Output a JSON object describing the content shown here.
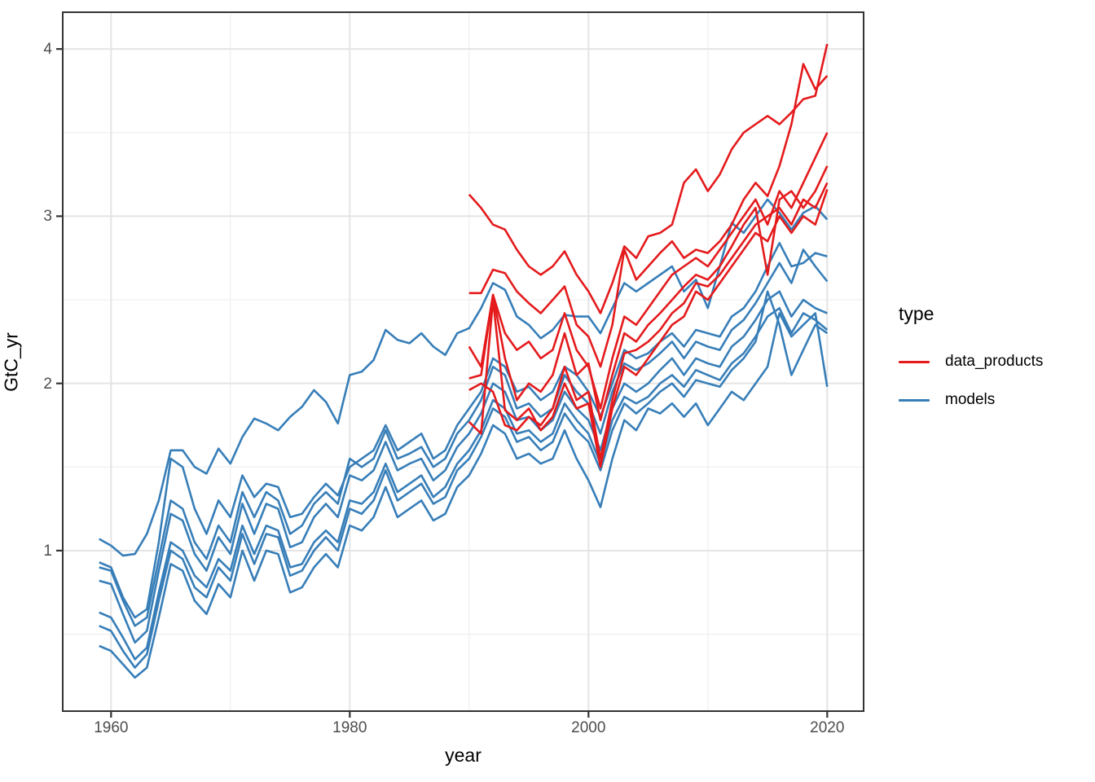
{
  "chart_data": {
    "type": "line",
    "xlabel": "year",
    "ylabel": "GtC_yr",
    "x_domain": [
      1955.95,
      2023.05
    ],
    "y_domain": [
      0.04,
      4.22
    ],
    "x_major_ticks": [
      1960,
      1980,
      2000,
      2020
    ],
    "x_minor_ticks": [
      1970,
      1990,
      2010
    ],
    "y_major_ticks": [
      1,
      2,
      3,
      4
    ],
    "y_minor_ticks": [
      0.5,
      1.5,
      2.5,
      3.5
    ],
    "grid": {
      "major_color": "#e4e4e4",
      "minor_color": "#f0f0f0",
      "panel_border_color": "#333333",
      "tick_color": "#333333"
    },
    "legend": {
      "title": "type",
      "entries": [
        {
          "label": "data_products",
          "color": "#E41A1C"
        },
        {
          "label": "models",
          "color": "#377EB8"
        }
      ]
    },
    "series": [
      {
        "name": "model_1",
        "type": "models",
        "start_year": 1959,
        "values": [
          1.07,
          1.03,
          0.97,
          0.98,
          1.1,
          1.3,
          1.6,
          1.6,
          1.5,
          1.46,
          1.61,
          1.52,
          1.68,
          1.79,
          1.76,
          1.72,
          1.8,
          1.86,
          1.96,
          1.89,
          1.76,
          2.05,
          2.07,
          2.14,
          2.32,
          2.26,
          2.24,
          2.3,
          2.22,
          2.17,
          2.3,
          2.33,
          2.45,
          2.6,
          2.56,
          2.4,
          2.35,
          2.27,
          2.32,
          2.41,
          2.4,
          2.4,
          2.3,
          2.45,
          2.6,
          2.55,
          2.6,
          2.65,
          2.7,
          2.55,
          2.62,
          2.45,
          2.7,
          2.96,
          2.9,
          3.0,
          3.1,
          3.02,
          2.92,
          3.02,
          3.06,
          2.98
        ]
      },
      {
        "name": "model_2",
        "type": "models",
        "start_year": 1959,
        "values": [
          0.93,
          0.9,
          0.72,
          0.6,
          0.65,
          1.05,
          1.55,
          1.5,
          1.25,
          1.1,
          1.3,
          1.2,
          1.45,
          1.32,
          1.4,
          1.38,
          1.2,
          1.22,
          1.32,
          1.4,
          1.33,
          1.5,
          1.55,
          1.6,
          1.75,
          1.6,
          1.65,
          1.7,
          1.55,
          1.6,
          1.75,
          1.85,
          1.95,
          2.15,
          2.1,
          1.95,
          1.98,
          1.9,
          1.95,
          2.1,
          2.05,
          1.95,
          1.8,
          2.0,
          2.2,
          2.15,
          2.18,
          2.25,
          2.3,
          2.22,
          2.32,
          2.3,
          2.28,
          2.4,
          2.45,
          2.55,
          2.7,
          2.84,
          2.7,
          2.72,
          2.78,
          2.76
        ]
      },
      {
        "name": "model_3",
        "type": "models",
        "start_year": 1959,
        "values": [
          0.9,
          0.88,
          0.7,
          0.55,
          0.6,
          0.95,
          1.3,
          1.25,
          1.05,
          0.95,
          1.15,
          1.05,
          1.35,
          1.2,
          1.35,
          1.3,
          1.1,
          1.15,
          1.28,
          1.35,
          1.28,
          1.55,
          1.5,
          1.55,
          1.72,
          1.55,
          1.58,
          1.62,
          1.5,
          1.55,
          1.7,
          1.78,
          1.9,
          2.1,
          2.05,
          1.85,
          1.88,
          1.8,
          1.85,
          2.05,
          1.95,
          1.88,
          1.7,
          1.95,
          2.12,
          2.08,
          2.12,
          2.18,
          2.25,
          2.15,
          2.25,
          2.22,
          2.2,
          2.32,
          2.38,
          2.48,
          2.6,
          2.72,
          2.6,
          2.8,
          2.7,
          2.61
        ]
      },
      {
        "name": "model_4",
        "type": "models",
        "start_year": 1959,
        "values": [
          0.82,
          0.8,
          0.62,
          0.45,
          0.52,
          0.88,
          1.22,
          1.18,
          0.98,
          0.88,
          1.08,
          0.98,
          1.28,
          1.1,
          1.28,
          1.25,
          1.02,
          1.05,
          1.2,
          1.28,
          1.2,
          1.45,
          1.42,
          1.48,
          1.65,
          1.48,
          1.52,
          1.55,
          1.42,
          1.48,
          1.62,
          1.7,
          1.82,
          2.0,
          1.95,
          1.78,
          1.8,
          1.72,
          1.78,
          1.95,
          1.85,
          1.78,
          1.6,
          1.85,
          2.0,
          1.95,
          2.0,
          2.08,
          2.15,
          2.05,
          2.15,
          2.12,
          2.1,
          2.22,
          2.28,
          2.38,
          2.5,
          2.55,
          2.4,
          2.5,
          2.45,
          2.42
        ]
      },
      {
        "name": "model_5",
        "type": "models",
        "start_year": 1959,
        "values": [
          0.63,
          0.6,
          0.48,
          0.35,
          0.42,
          0.75,
          1.05,
          1.0,
          0.85,
          0.78,
          0.95,
          0.88,
          1.15,
          0.98,
          1.15,
          1.12,
          0.9,
          0.92,
          1.05,
          1.12,
          1.05,
          1.3,
          1.28,
          1.35,
          1.52,
          1.35,
          1.4,
          1.45,
          1.32,
          1.38,
          1.52,
          1.6,
          1.72,
          1.9,
          1.85,
          1.7,
          1.72,
          1.65,
          1.7,
          1.88,
          1.78,
          1.7,
          1.52,
          1.78,
          1.92,
          1.88,
          1.92,
          2.0,
          2.05,
          1.98,
          2.08,
          2.05,
          2.02,
          2.12,
          2.18,
          2.28,
          2.4,
          2.45,
          2.3,
          2.42,
          2.38,
          2.32
        ]
      },
      {
        "name": "model_6",
        "type": "models",
        "start_year": 1959,
        "values": [
          0.55,
          0.52,
          0.4,
          0.3,
          0.38,
          0.7,
          1.0,
          0.95,
          0.78,
          0.72,
          0.9,
          0.82,
          1.1,
          0.92,
          1.1,
          1.08,
          0.85,
          0.88,
          1.0,
          1.08,
          1.0,
          1.25,
          1.22,
          1.3,
          1.48,
          1.3,
          1.35,
          1.4,
          1.28,
          1.32,
          1.48,
          1.55,
          1.68,
          1.85,
          1.8,
          1.65,
          1.68,
          1.6,
          1.65,
          1.82,
          1.72,
          1.65,
          1.48,
          1.72,
          1.88,
          1.82,
          1.88,
          1.95,
          2.0,
          1.92,
          2.02,
          2.0,
          1.98,
          2.08,
          2.15,
          2.25,
          2.55,
          2.35,
          2.05,
          2.2,
          2.35,
          2.3
        ]
      },
      {
        "name": "model_7",
        "type": "models",
        "start_year": 1959,
        "values": [
          0.43,
          0.4,
          0.32,
          0.24,
          0.3,
          0.6,
          0.92,
          0.88,
          0.7,
          0.62,
          0.8,
          0.72,
          1.0,
          0.82,
          1.0,
          0.98,
          0.75,
          0.78,
          0.9,
          0.98,
          0.9,
          1.15,
          1.12,
          1.2,
          1.38,
          1.2,
          1.25,
          1.3,
          1.18,
          1.22,
          1.38,
          1.45,
          1.58,
          1.75,
          1.7,
          1.55,
          1.58,
          1.52,
          1.55,
          1.72,
          1.55,
          1.42,
          1.26,
          1.55,
          1.78,
          1.72,
          1.85,
          1.82,
          1.88,
          1.8,
          1.88,
          1.75,
          1.85,
          1.95,
          1.9,
          2.0,
          2.1,
          2.42,
          2.28,
          2.35,
          2.42,
          1.98
        ]
      },
      {
        "name": "data_product_1",
        "type": "data_products",
        "start_year": 1990,
        "values": [
          3.13,
          3.05,
          2.95,
          2.92,
          2.8,
          2.7,
          2.65,
          2.7,
          2.79,
          2.65,
          2.55,
          2.42,
          2.6,
          2.82,
          2.75,
          2.88,
          2.9,
          2.95,
          3.2,
          3.28,
          3.15,
          3.25,
          3.4,
          3.5,
          3.55,
          3.6,
          3.55,
          3.62,
          3.7,
          3.72,
          4.03
        ]
      },
      {
        "name": "data_product_2",
        "type": "data_products",
        "start_year": 1990,
        "values": [
          2.54,
          2.54,
          2.68,
          2.66,
          2.55,
          2.48,
          2.42,
          2.5,
          2.58,
          2.35,
          2.28,
          2.1,
          2.35,
          2.8,
          2.62,
          2.7,
          2.78,
          2.85,
          2.75,
          2.8,
          2.78,
          2.85,
          2.95,
          3.1,
          3.2,
          3.12,
          3.3,
          3.55,
          3.91,
          3.76,
          3.84
        ]
      },
      {
        "name": "data_product_3",
        "type": "data_products",
        "start_year": 1990,
        "values": [
          2.22,
          2.1,
          2.53,
          2.3,
          2.2,
          2.25,
          2.15,
          2.2,
          2.42,
          2.2,
          2.1,
          1.85,
          2.15,
          2.4,
          2.35,
          2.45,
          2.55,
          2.65,
          2.7,
          2.75,
          2.7,
          2.8,
          2.9,
          3.0,
          3.1,
          2.95,
          3.15,
          3.05,
          3.2,
          3.35,
          3.5
        ]
      },
      {
        "name": "data_product_4",
        "type": "data_products",
        "start_year": 1990,
        "values": [
          2.03,
          2.05,
          2.53,
          2.15,
          1.9,
          2.0,
          1.95,
          2.05,
          2.3,
          2.05,
          2.12,
          1.78,
          2.05,
          2.3,
          2.25,
          2.35,
          2.42,
          2.5,
          2.58,
          2.65,
          2.62,
          2.7,
          2.82,
          2.95,
          3.05,
          2.65,
          3.1,
          3.15,
          3.05,
          3.15,
          3.3
        ]
      },
      {
        "name": "data_product_5",
        "type": "data_products",
        "start_year": 1990,
        "values": [
          1.96,
          2.0,
          1.95,
          1.75,
          1.72,
          1.8,
          1.75,
          1.85,
          2.1,
          1.9,
          1.95,
          1.55,
          1.9,
          2.18,
          2.2,
          2.25,
          2.32,
          2.42,
          2.48,
          2.6,
          2.58,
          2.65,
          2.75,
          2.85,
          2.95,
          3.0,
          3.05,
          2.95,
          3.1,
          3.05,
          3.2
        ]
      },
      {
        "name": "data_product_6",
        "type": "data_products",
        "start_year": 1990,
        "values": [
          1.77,
          1.7,
          2.5,
          1.84,
          1.78,
          1.85,
          1.72,
          1.8,
          2.0,
          1.85,
          1.88,
          1.5,
          1.85,
          2.1,
          2.05,
          2.15,
          2.25,
          2.35,
          2.4,
          2.55,
          2.5,
          2.6,
          2.7,
          2.8,
          2.9,
          2.85,
          3.0,
          2.9,
          3.0,
          2.95,
          3.16
        ]
      }
    ]
  }
}
